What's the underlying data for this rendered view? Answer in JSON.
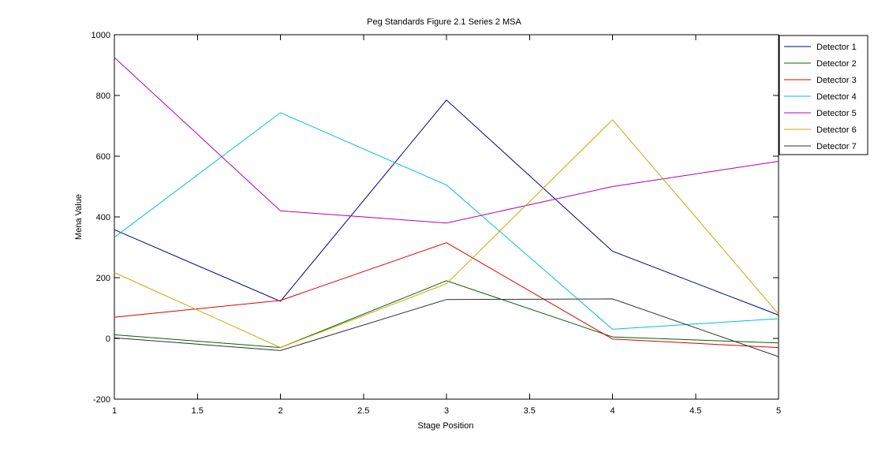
{
  "chart_data": {
    "type": "line",
    "title": "Peg Standards Figure 2.1 Series 2 MSA",
    "xlabel": "Stage Position",
    "ylabel": "Mena Value",
    "xlim": [
      1,
      5
    ],
    "ylim": [
      -200,
      1000
    ],
    "x": [
      1,
      2,
      3,
      4,
      5
    ],
    "x_ticks": [
      1,
      1.5,
      2,
      2.5,
      3,
      3.5,
      4,
      4.5,
      5
    ],
    "x_tick_labels": [
      "1",
      "1.5",
      "2",
      "2.5",
      "3",
      "3.5",
      "4",
      "4.5",
      "5"
    ],
    "y_ticks": [
      -200,
      0,
      200,
      400,
      600,
      800,
      1000
    ],
    "y_tick_labels": [
      "-200",
      "0",
      "200",
      "400",
      "600",
      "800",
      "1000"
    ],
    "grid": false,
    "legend_position": "top-right",
    "series": [
      {
        "name": "Detector 1",
        "color": "#00008b",
        "values": [
          358,
          122,
          785,
          287,
          77
        ]
      },
      {
        "name": "Detector 2",
        "color": "#006400",
        "values": [
          12,
          -30,
          190,
          5,
          -15
        ]
      },
      {
        "name": "Detector 3",
        "color": "#dd0000",
        "values": [
          70,
          125,
          315,
          -2,
          -30
        ]
      },
      {
        "name": "Detector 4",
        "color": "#00bfd0",
        "values": [
          333,
          743,
          505,
          30,
          65
        ]
      },
      {
        "name": "Detector 5",
        "color": "#b000b8",
        "values": [
          925,
          420,
          380,
          500,
          583
        ]
      },
      {
        "name": "Detector 6",
        "color": "#c8a800",
        "values": [
          217,
          -30,
          180,
          720,
          80
        ]
      },
      {
        "name": "Detector 7",
        "color": "#303030",
        "values": [
          2,
          -40,
          128,
          130,
          -60
        ]
      }
    ]
  }
}
